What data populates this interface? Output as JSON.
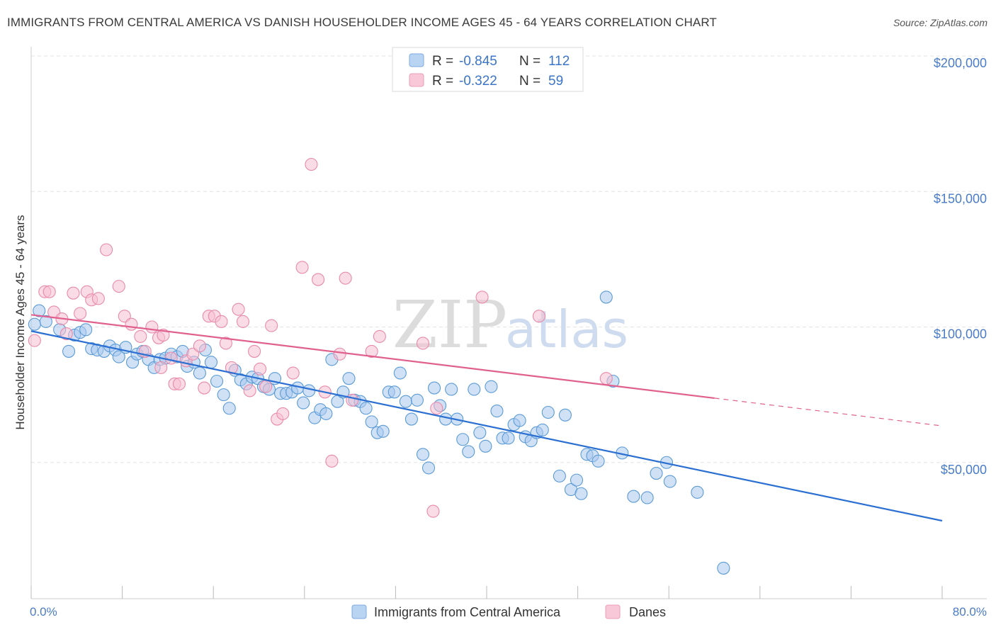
{
  "header": {
    "title": "IMMIGRANTS FROM CENTRAL AMERICA VS DANISH HOUSEHOLDER INCOME AGES 45 - 64 YEARS CORRELATION CHART",
    "source": "Source: ZipAtlas.com"
  },
  "watermark": {
    "zip": "ZIP",
    "atlas": "atlas"
  },
  "legend": {
    "r_label": "R =",
    "n_label": "N =",
    "rows": [
      {
        "r": "-0.845",
        "n": "112"
      },
      {
        "r": "-0.322",
        "n": "59"
      }
    ]
  },
  "chart_data": {
    "type": "scatter",
    "xlabel": "",
    "ylabel": "Householder Income Ages 45 - 64 years",
    "xlim": [
      0,
      80
    ],
    "ylim": [
      0,
      210000
    ],
    "x_tick_labels": {
      "left": "0.0%",
      "right": "80.0%"
    },
    "y_ticks": [
      {
        "value": 50000,
        "label": "$50,000"
      },
      {
        "value": 100000,
        "label": "$100,000"
      },
      {
        "value": 150000,
        "label": "$150,000"
      },
      {
        "value": 200000,
        "label": "$200,000"
      }
    ],
    "grid": true,
    "legend_position": "top-center",
    "series": [
      {
        "name": "Immigrants from Central America",
        "color": "#5b9bd5",
        "fill": "#a9c8ee",
        "line_color": "#2a6fd1",
        "r": -0.845,
        "n": 112,
        "trend": {
          "x": [
            0,
            80
          ],
          "y": [
            98500,
            28500
          ],
          "dashed_from": null
        },
        "points": [
          [
            0.3,
            101000
          ],
          [
            0.7,
            106000
          ],
          [
            1.3,
            102000
          ],
          [
            2.5,
            99000
          ],
          [
            3.3,
            91000
          ],
          [
            3.8,
            97000
          ],
          [
            4.3,
            98000
          ],
          [
            4.8,
            99000
          ],
          [
            5.3,
            92000
          ],
          [
            5.8,
            91500
          ],
          [
            6.4,
            91000
          ],
          [
            6.9,
            93000
          ],
          [
            7.4,
            91500
          ],
          [
            7.7,
            89000
          ],
          [
            8.3,
            92500
          ],
          [
            8.9,
            87000
          ],
          [
            9.3,
            90000
          ],
          [
            9.8,
            91000
          ],
          [
            10.3,
            88000
          ],
          [
            10.8,
            85000
          ],
          [
            11.3,
            88000
          ],
          [
            11.8,
            88500
          ],
          [
            12.3,
            90000
          ],
          [
            12.8,
            89000
          ],
          [
            13.3,
            91000
          ],
          [
            13.7,
            85500
          ],
          [
            14.3,
            87000
          ],
          [
            14.8,
            83000
          ],
          [
            15.3,
            91500
          ],
          [
            15.8,
            87000
          ],
          [
            16.3,
            80000
          ],
          [
            16.9,
            75000
          ],
          [
            17.4,
            70000
          ],
          [
            17.9,
            84000
          ],
          [
            18.4,
            80500
          ],
          [
            18.9,
            79000
          ],
          [
            19.4,
            81500
          ],
          [
            19.9,
            81000
          ],
          [
            20.4,
            78000
          ],
          [
            20.9,
            77000
          ],
          [
            21.4,
            81000
          ],
          [
            21.9,
            75500
          ],
          [
            22.4,
            75500
          ],
          [
            22.9,
            76000
          ],
          [
            23.4,
            77500
          ],
          [
            23.9,
            72000
          ],
          [
            24.4,
            76500
          ],
          [
            24.9,
            66500
          ],
          [
            25.4,
            69500
          ],
          [
            25.9,
            68000
          ],
          [
            26.4,
            88000
          ],
          [
            26.9,
            72500
          ],
          [
            27.4,
            76000
          ],
          [
            27.9,
            81000
          ],
          [
            28.4,
            73000
          ],
          [
            28.9,
            72500
          ],
          [
            29.4,
            70000
          ],
          [
            29.9,
            65000
          ],
          [
            30.4,
            61000
          ],
          [
            30.9,
            61500
          ],
          [
            31.4,
            76000
          ],
          [
            31.9,
            76000
          ],
          [
            32.4,
            83000
          ],
          [
            32.9,
            72500
          ],
          [
            33.4,
            66000
          ],
          [
            33.9,
            73000
          ],
          [
            34.4,
            53000
          ],
          [
            34.9,
            48000
          ],
          [
            35.4,
            77500
          ],
          [
            35.9,
            71000
          ],
          [
            36.4,
            66000
          ],
          [
            36.9,
            77000
          ],
          [
            37.4,
            66000
          ],
          [
            37.9,
            58500
          ],
          [
            38.4,
            54000
          ],
          [
            38.9,
            77000
          ],
          [
            39.4,
            61000
          ],
          [
            39.9,
            56000
          ],
          [
            40.4,
            78000
          ],
          [
            40.9,
            69000
          ],
          [
            41.4,
            59000
          ],
          [
            41.9,
            59000
          ],
          [
            42.4,
            64000
          ],
          [
            42.9,
            65500
          ],
          [
            43.4,
            59500
          ],
          [
            43.9,
            58000
          ],
          [
            44.4,
            61000
          ],
          [
            44.9,
            62000
          ],
          [
            45.4,
            68500
          ],
          [
            46.4,
            45000
          ],
          [
            46.9,
            67500
          ],
          [
            47.4,
            40000
          ],
          [
            47.9,
            43500
          ],
          [
            48.3,
            38500
          ],
          [
            48.8,
            53000
          ],
          [
            49.3,
            52500
          ],
          [
            49.8,
            50500
          ],
          [
            50.5,
            111000
          ],
          [
            51.1,
            80000
          ],
          [
            51.9,
            53500
          ],
          [
            52.9,
            37500
          ],
          [
            54.9,
            46000
          ],
          [
            54.1,
            37000
          ],
          [
            56.1,
            43000
          ],
          [
            55.8,
            50000
          ],
          [
            58.5,
            39000
          ],
          [
            60.8,
            11000
          ]
        ]
      },
      {
        "name": "Danes",
        "color": "#e88aaa",
        "fill": "#f6bfd1",
        "line_color": "#e0608e",
        "r": -0.322,
        "n": 59,
        "trend": {
          "x": [
            0,
            80
          ],
          "y": [
            104500,
            63500
          ],
          "dashed_from": 60
        },
        "points": [
          [
            0.3,
            95000
          ],
          [
            1.2,
            113000
          ],
          [
            1.6,
            113000
          ],
          [
            2.0,
            105500
          ],
          [
            2.7,
            103000
          ],
          [
            3.1,
            97500
          ],
          [
            3.7,
            112500
          ],
          [
            4.3,
            105000
          ],
          [
            4.9,
            113000
          ],
          [
            5.3,
            110000
          ],
          [
            5.9,
            110500
          ],
          [
            6.6,
            128500
          ],
          [
            7.7,
            115000
          ],
          [
            8.2,
            104000
          ],
          [
            8.8,
            101000
          ],
          [
            9.6,
            96500
          ],
          [
            10.0,
            91000
          ],
          [
            10.6,
            100000
          ],
          [
            11.2,
            96000
          ],
          [
            11.6,
            97000
          ],
          [
            12.3,
            88500
          ],
          [
            12.6,
            79000
          ],
          [
            13.0,
            79000
          ],
          [
            13.6,
            87500
          ],
          [
            14.2,
            90000
          ],
          [
            14.8,
            93000
          ],
          [
            15.2,
            77500
          ],
          [
            15.6,
            104000
          ],
          [
            16.1,
            104000
          ],
          [
            16.7,
            102000
          ],
          [
            17.1,
            94000
          ],
          [
            17.6,
            85000
          ],
          [
            18.2,
            106500
          ],
          [
            18.6,
            102000
          ],
          [
            19.2,
            76500
          ],
          [
            19.6,
            91000
          ],
          [
            20.1,
            84500
          ],
          [
            20.6,
            78000
          ],
          [
            21.1,
            100500
          ],
          [
            21.6,
            66000
          ],
          [
            22.1,
            68000
          ],
          [
            23.8,
            122000
          ],
          [
            24.6,
            160000
          ],
          [
            25.2,
            117500
          ],
          [
            25.8,
            76000
          ],
          [
            26.4,
            50500
          ],
          [
            27.1,
            90000
          ],
          [
            27.6,
            118000
          ],
          [
            28.2,
            73000
          ],
          [
            29.9,
            91000
          ],
          [
            30.6,
            96500
          ],
          [
            34.4,
            94000
          ],
          [
            35.3,
            32000
          ],
          [
            35.6,
            70000
          ],
          [
            39.6,
            111000
          ],
          [
            44.6,
            104000
          ],
          [
            50.5,
            81000
          ],
          [
            11.4,
            85000
          ],
          [
            23.0,
            83000
          ]
        ]
      }
    ]
  }
}
